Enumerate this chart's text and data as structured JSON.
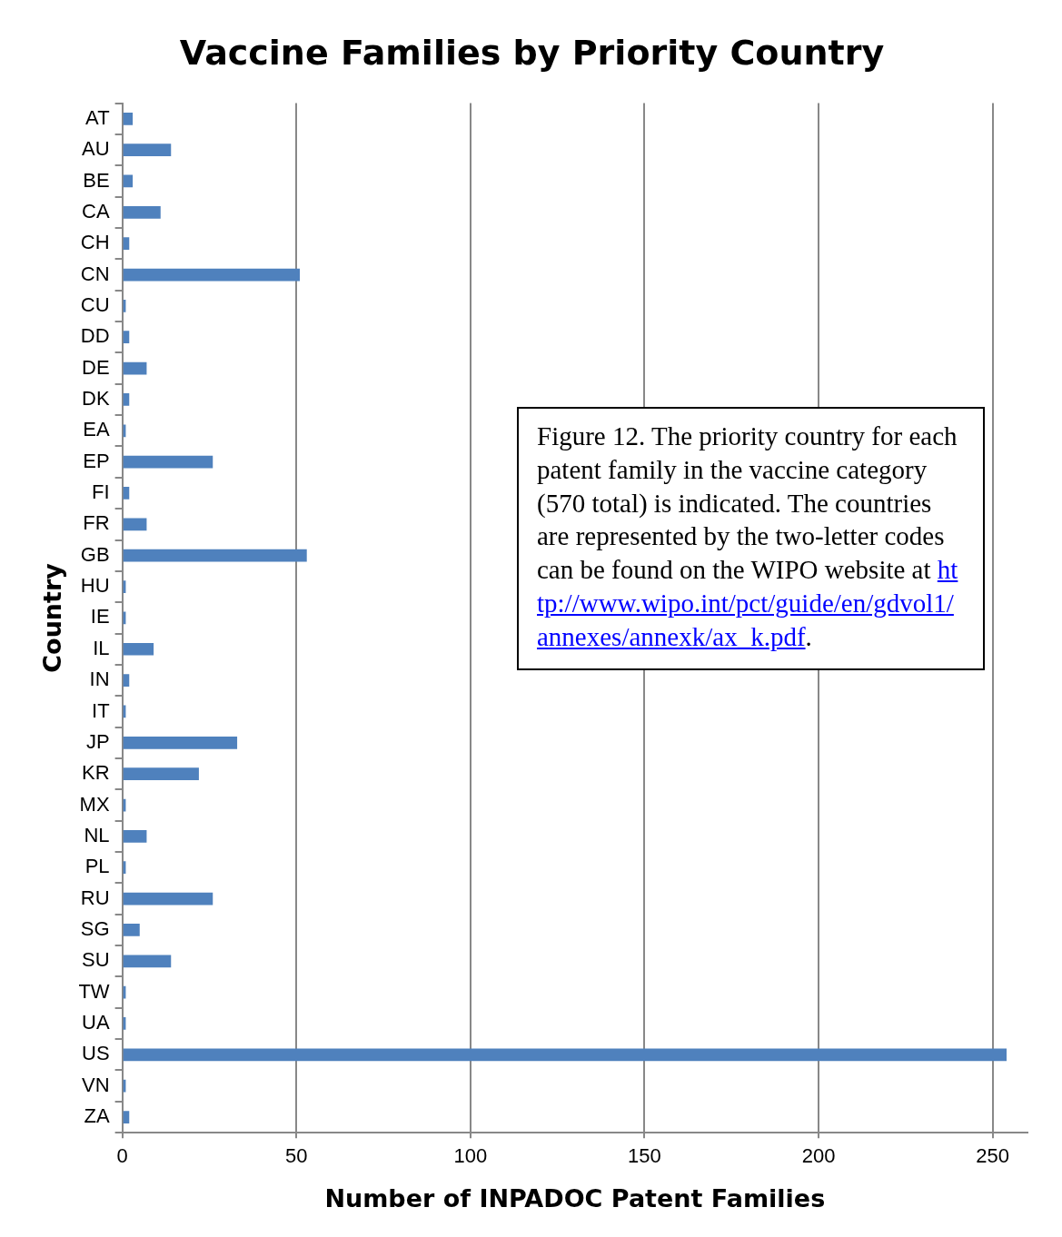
{
  "chart_data": {
    "type": "bar",
    "orientation": "horizontal",
    "title": "Vaccine Families by Priority Country",
    "xlabel": "Number of INPADOC Patent Families",
    "ylabel": "Country",
    "categories": [
      "AT",
      "AU",
      "BE",
      "CA",
      "CH",
      "CN",
      "CU",
      "DD",
      "DE",
      "DK",
      "EA",
      "EP",
      "FI",
      "FR",
      "GB",
      "HU",
      "IE",
      "IL",
      "IN",
      "IT",
      "JP",
      "KR",
      "MX",
      "NL",
      "PL",
      "RU",
      "SG",
      "SU",
      "TW",
      "UA",
      "US",
      "VN",
      "ZA"
    ],
    "values": [
      3,
      14,
      3,
      11,
      2,
      51,
      1,
      2,
      7,
      2,
      1,
      26,
      2,
      7,
      53,
      1,
      1,
      9,
      2,
      1,
      33,
      22,
      1,
      7,
      1,
      26,
      5,
      14,
      1,
      1,
      254,
      1,
      2
    ],
    "color": "#4f81bd",
    "xlim": [
      0,
      260
    ],
    "xticks": [
      0,
      50,
      100,
      150,
      200,
      250
    ],
    "grid": "x",
    "legend": false,
    "annotations": [
      "Figure 12.  The priority country for each patent family in the vaccine category (570 total) is indicated. The countries are represented by the two-letter codes can be found on the WIPO website at http://www.wipo.int/pct/guide/en/gdvol1/annexes/annexk/ax_k.pdf."
    ]
  }
}
